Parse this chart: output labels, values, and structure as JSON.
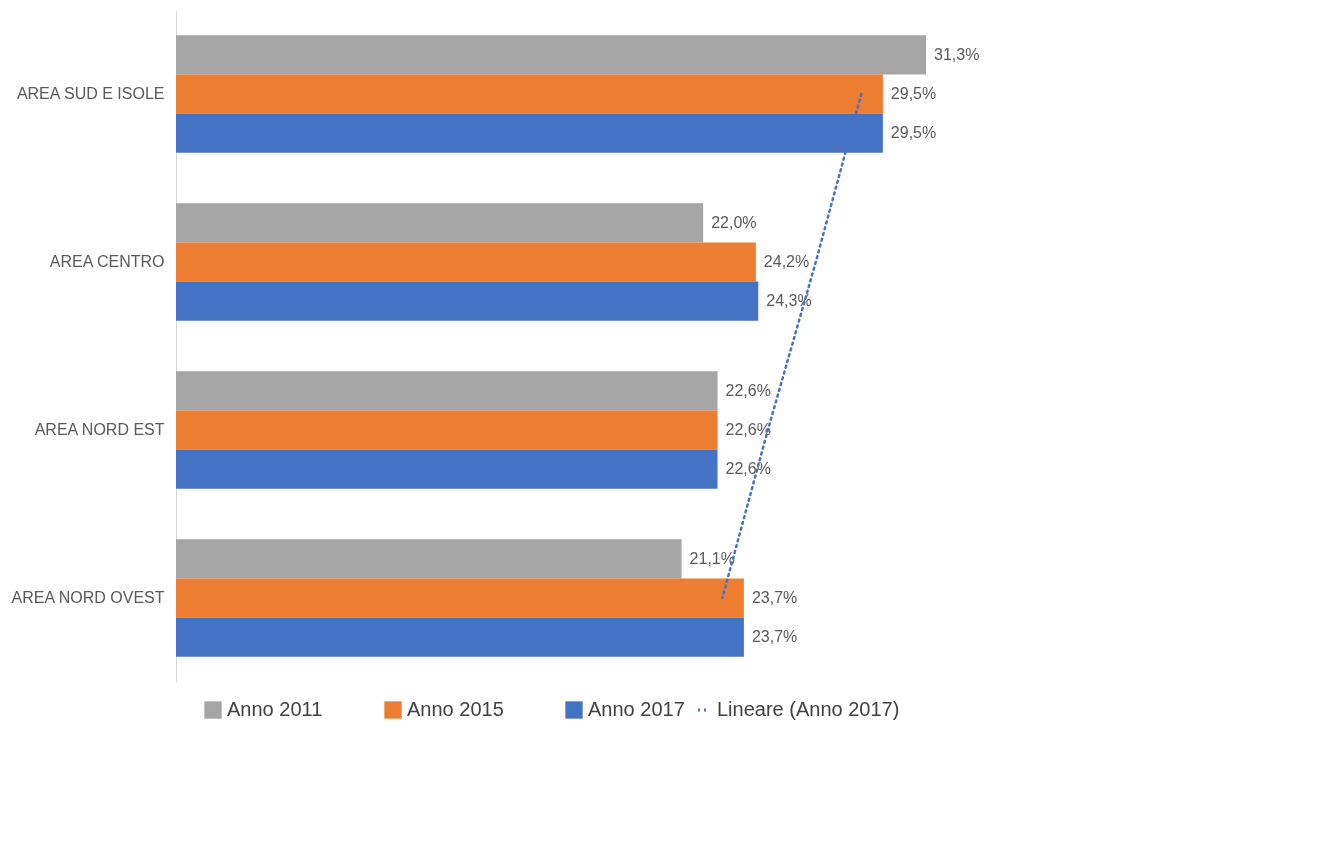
{
  "chart_data": {
    "type": "bar",
    "orientation": "horizontal",
    "categories": [
      "AREA SUD E ISOLE",
      "AREA CENTRO",
      "AREA NORD EST",
      "AREA NORD OVEST"
    ],
    "series": [
      {
        "name": "Anno 2011",
        "color": "#a5a5a5",
        "values": [
          31.3,
          22.0,
          22.6,
          21.1
        ],
        "value_labels": [
          "31,3%",
          "22,0%",
          "22,6%",
          "21,1%"
        ]
      },
      {
        "name": "Anno 2015",
        "color": "#ed7d31",
        "values": [
          29.5,
          24.2,
          22.6,
          23.7
        ],
        "value_labels": [
          "29,5%",
          "24,2%",
          "22,6%",
          "23,7%"
        ]
      },
      {
        "name": "Anno 2017",
        "color": "#4472c4",
        "values": [
          29.5,
          24.3,
          22.6,
          23.7
        ],
        "value_labels": [
          "29,5%",
          "24,3%",
          "22,6%",
          "23,7%"
        ]
      },
      {
        "name": "Lineare (Anno 2017)",
        "type": "line",
        "line_style": "dotted",
        "color": "#4472c4",
        "values": [
          28.6,
          26.7,
          24.7,
          22.8
        ]
      }
    ],
    "legend": "bottom",
    "tick_labels": "y"
  }
}
